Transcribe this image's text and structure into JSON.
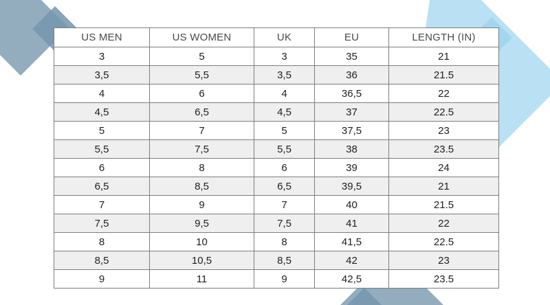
{
  "size_chart": {
    "headers": [
      "US MEN",
      "US WOMEN",
      "UK",
      "EU",
      "LENGTH (IN)"
    ],
    "rows": [
      [
        "3",
        "5",
        "3",
        "35",
        "21"
      ],
      [
        "3,5",
        "5,5",
        "3,5",
        "36",
        "21.5"
      ],
      [
        "4",
        "6",
        "4",
        "36,5",
        "22"
      ],
      [
        "4,5",
        "6,5",
        "4,5",
        "37",
        "22.5"
      ],
      [
        "5",
        "7",
        "5",
        "37,5",
        "23"
      ],
      [
        "5,5",
        "7,5",
        "5,5",
        "38",
        "23.5"
      ],
      [
        "6",
        "8",
        "6",
        "39",
        "24"
      ],
      [
        "6,5",
        "8,5",
        "6,5",
        "39,5",
        "21"
      ],
      [
        "7",
        "9",
        "7",
        "40",
        "21.5"
      ],
      [
        "7,5",
        "9,5",
        "7,5",
        "41",
        "22"
      ],
      [
        "8",
        "10",
        "8",
        "41,5",
        "22.5"
      ],
      [
        "8,5",
        "10,5",
        "8,5",
        "42",
        "23"
      ],
      [
        "9",
        "11",
        "9",
        "42,5",
        "23.5"
      ]
    ]
  },
  "colors": {
    "deco_slate": "#93adbf",
    "deco_light_blue": "#b9e1f3",
    "deco_steel": "#7497ad",
    "row_stripe": "#efefef",
    "grid_line": "#7d7d7d"
  }
}
